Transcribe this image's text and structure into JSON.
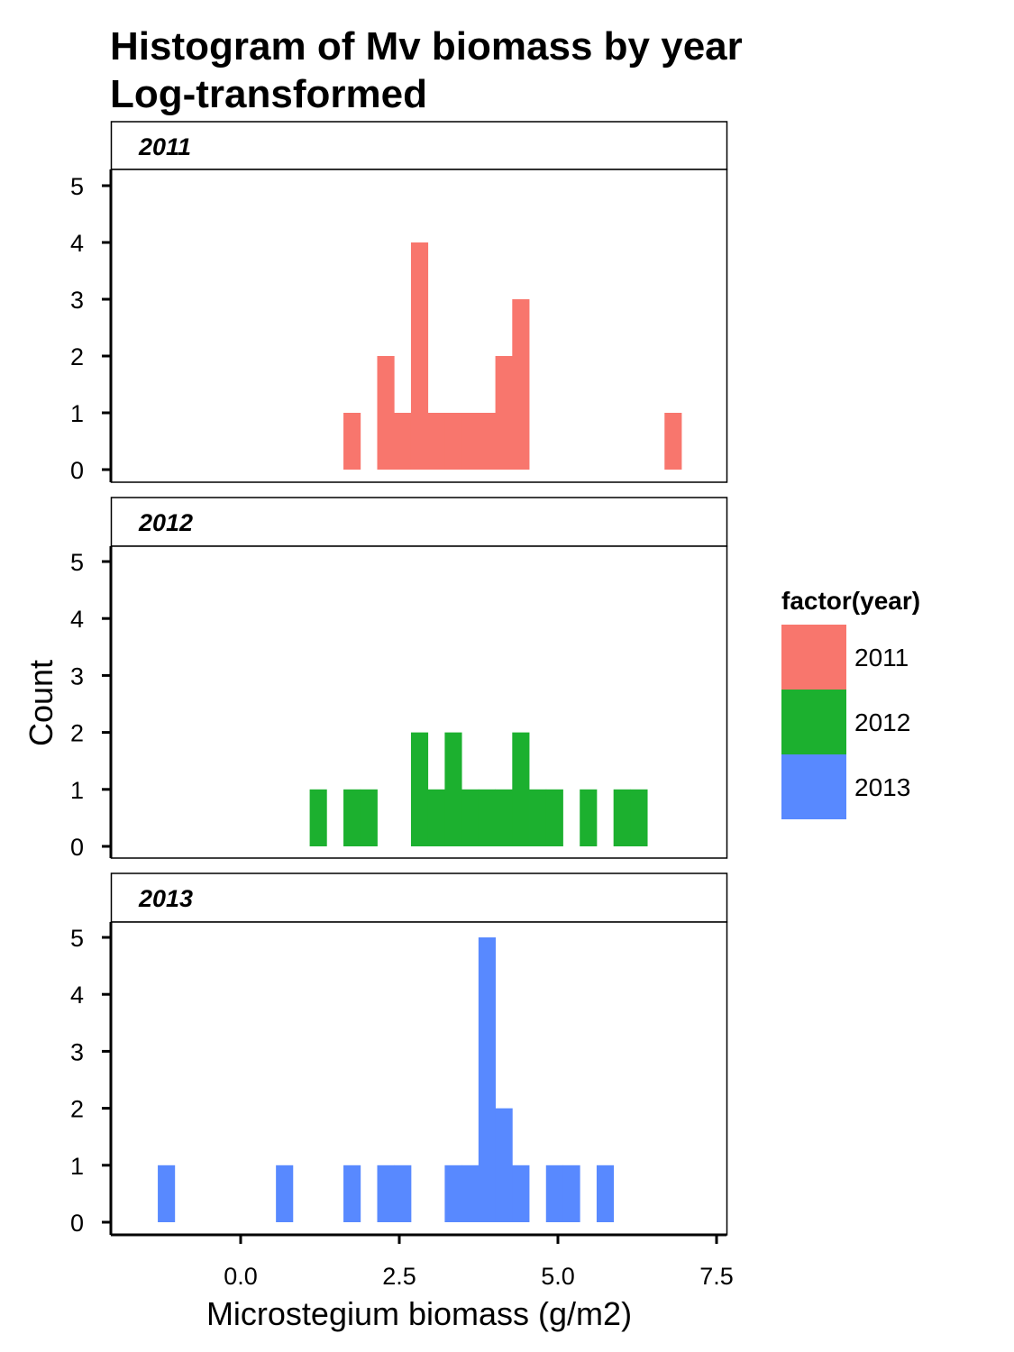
{
  "chart_data": {
    "type": "histogram",
    "title": "Histogram of Mv biomass by year",
    "subtitle": "Log-transformed",
    "xlabel": "Microstegium biomass (g/m2)",
    "ylabel": "Count",
    "xlim": [
      -1.6,
      7.6
    ],
    "ylim": [
      0,
      5
    ],
    "xticks": [
      0.0,
      2.5,
      5.0,
      7.5
    ],
    "xtick_labels": [
      "0.0",
      "2.5",
      "5.0",
      "7.5"
    ],
    "yticks": [
      0,
      1,
      2,
      3,
      4,
      5
    ],
    "bin_width": 0.266,
    "legend": {
      "title": "factor(year)",
      "position": "right",
      "entries": [
        "2011",
        "2012",
        "2013"
      ]
    },
    "grid": false,
    "panels": [
      {
        "strip": "2011",
        "color": "#F8766D",
        "bins": [
          {
            "x0": 1.62,
            "x1": 1.886,
            "count": 1
          },
          {
            "x0": 2.152,
            "x1": 2.418,
            "count": 2
          },
          {
            "x0": 2.418,
            "x1": 2.684,
            "count": 1
          },
          {
            "x0": 2.684,
            "x1": 2.95,
            "count": 4
          },
          {
            "x0": 2.95,
            "x1": 3.216,
            "count": 1
          },
          {
            "x0": 3.216,
            "x1": 3.482,
            "count": 1
          },
          {
            "x0": 3.482,
            "x1": 3.748,
            "count": 1
          },
          {
            "x0": 3.748,
            "x1": 4.014,
            "count": 1
          },
          {
            "x0": 4.014,
            "x1": 4.28,
            "count": 2
          },
          {
            "x0": 4.28,
            "x1": 4.546,
            "count": 3
          },
          {
            "x0": 6.68,
            "x1": 6.946,
            "count": 1
          }
        ]
      },
      {
        "strip": "2012",
        "color": "#1CB02F",
        "bins": [
          {
            "x0": 1.088,
            "x1": 1.354,
            "count": 1
          },
          {
            "x0": 1.62,
            "x1": 1.886,
            "count": 1
          },
          {
            "x0": 1.886,
            "x1": 2.152,
            "count": 1
          },
          {
            "x0": 2.684,
            "x1": 2.95,
            "count": 2
          },
          {
            "x0": 2.95,
            "x1": 3.216,
            "count": 1
          },
          {
            "x0": 3.216,
            "x1": 3.482,
            "count": 2
          },
          {
            "x0": 3.482,
            "x1": 3.748,
            "count": 1
          },
          {
            "x0": 3.748,
            "x1": 4.014,
            "count": 1
          },
          {
            "x0": 4.014,
            "x1": 4.28,
            "count": 1
          },
          {
            "x0": 4.28,
            "x1": 4.546,
            "count": 2
          },
          {
            "x0": 4.546,
            "x1": 4.812,
            "count": 1
          },
          {
            "x0": 4.812,
            "x1": 5.078,
            "count": 1
          },
          {
            "x0": 5.344,
            "x1": 5.61,
            "count": 1
          },
          {
            "x0": 5.876,
            "x1": 6.142,
            "count": 1
          },
          {
            "x0": 6.142,
            "x1": 6.408,
            "count": 1
          }
        ]
      },
      {
        "strip": "2013",
        "color": "#5889FF",
        "bins": [
          {
            "x0": -1.306,
            "x1": -1.04,
            "count": 1
          },
          {
            "x0": 0.556,
            "x1": 0.822,
            "count": 1
          },
          {
            "x0": 1.62,
            "x1": 1.886,
            "count": 1
          },
          {
            "x0": 2.152,
            "x1": 2.418,
            "count": 1
          },
          {
            "x0": 2.418,
            "x1": 2.684,
            "count": 1
          },
          {
            "x0": 3.216,
            "x1": 3.482,
            "count": 1
          },
          {
            "x0": 3.482,
            "x1": 3.748,
            "count": 1
          },
          {
            "x0": 3.748,
            "x1": 4.014,
            "count": 5
          },
          {
            "x0": 4.014,
            "x1": 4.28,
            "count": 2
          },
          {
            "x0": 4.28,
            "x1": 4.546,
            "count": 1
          },
          {
            "x0": 4.812,
            "x1": 5.078,
            "count": 1
          },
          {
            "x0": 5.078,
            "x1": 5.344,
            "count": 1
          },
          {
            "x0": 5.61,
            "x1": 5.876,
            "count": 1
          }
        ]
      }
    ]
  }
}
